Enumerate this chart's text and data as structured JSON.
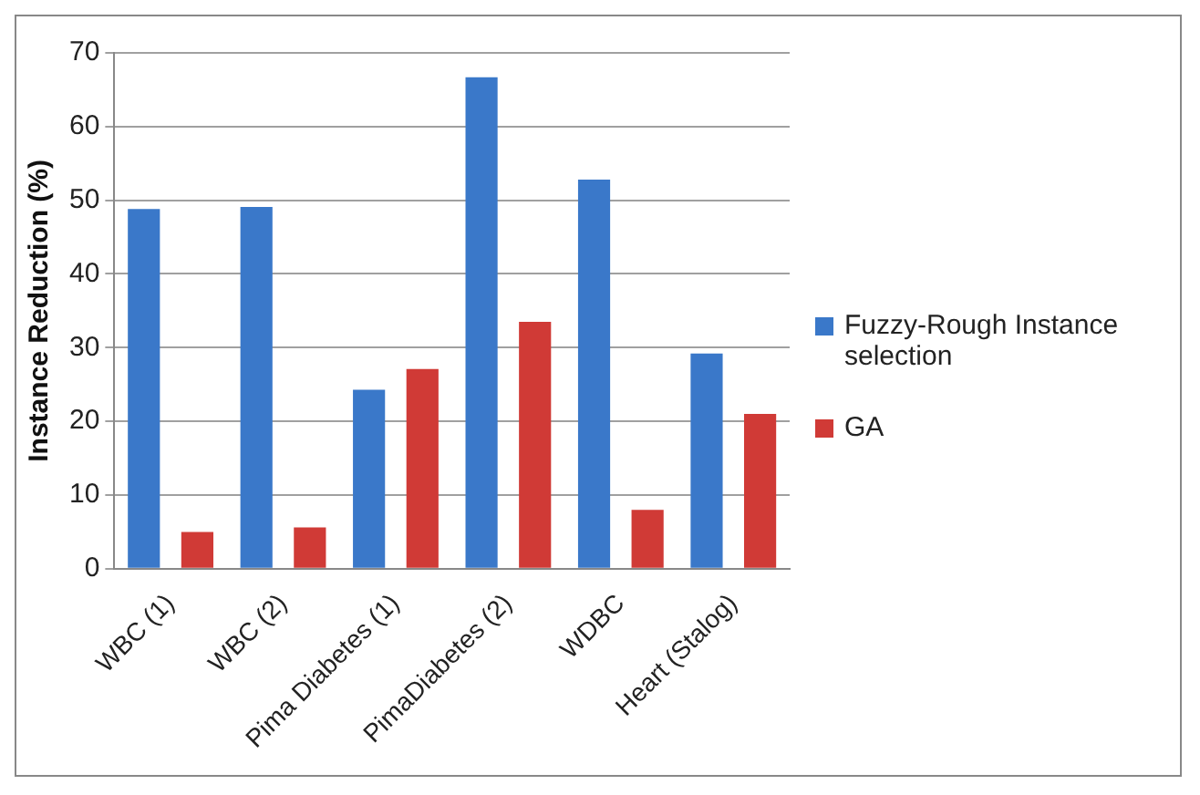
{
  "chart_data": {
    "type": "bar",
    "ylabel": "Instance Reduction (%)",
    "categories": [
      "WBC (1)",
      "WBC (2)",
      "Pima Diabetes (1)",
      "PimaDiabetes (2)",
      "WDBC",
      "Heart (Stalog)"
    ],
    "series": [
      {
        "name": "Fuzzy-Rough Instance selection",
        "color": "#3a78c9",
        "values": [
          48.8,
          49.1,
          24.3,
          66.7,
          52.8,
          29.2
        ]
      },
      {
        "name": "GA",
        "color": "#d03a36",
        "values": [
          5.0,
          5.6,
          27.1,
          33.5,
          8.0,
          21.0
        ]
      }
    ],
    "ylim": [
      0,
      70
    ],
    "yticks": [
      0,
      10,
      20,
      30,
      40,
      50,
      60,
      70
    ],
    "grid": "y",
    "legend": "right"
  }
}
